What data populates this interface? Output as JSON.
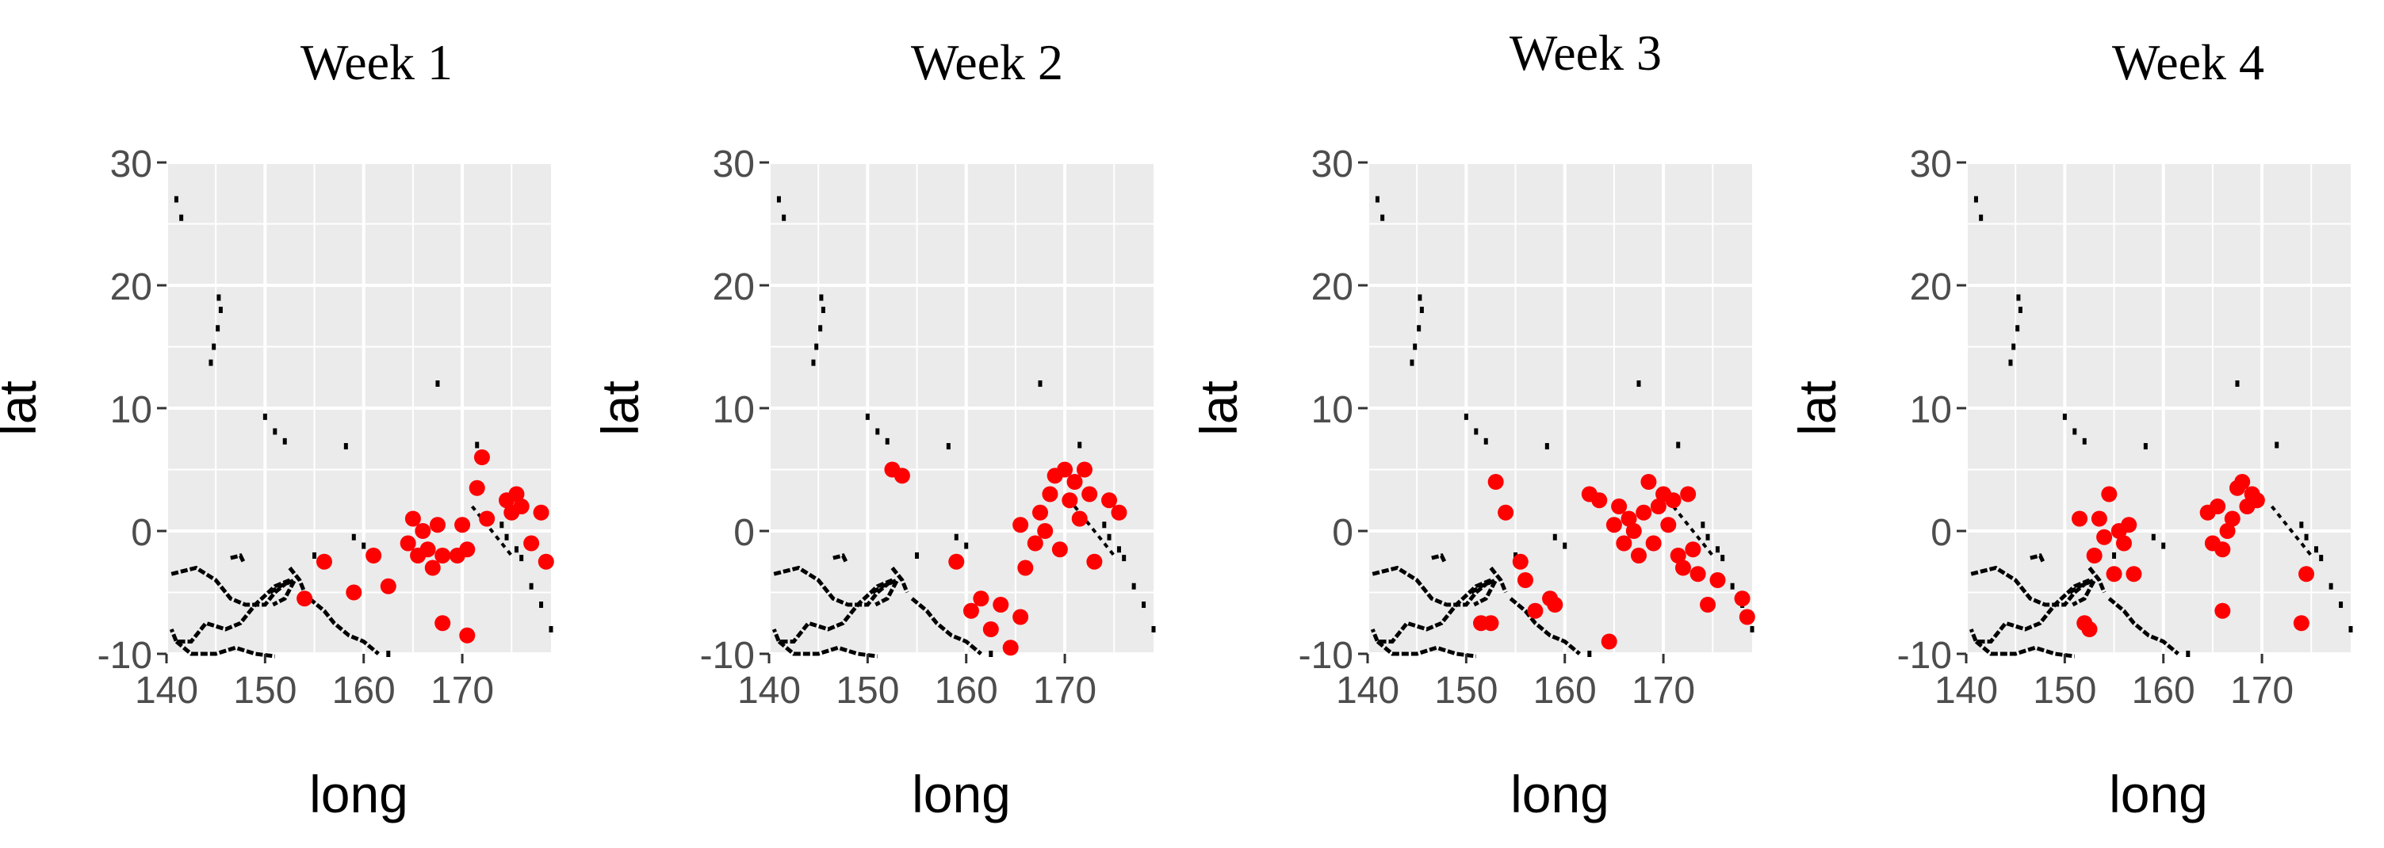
{
  "figure": {
    "panel_titles": [
      "Week 1",
      "Week 2",
      "Week 3",
      "Week 4"
    ]
  },
  "colors": {
    "panel_bg": "#ebebeb",
    "grid": "#ffffff",
    "point": "#ff0000",
    "coast": "#000000",
    "tick_text": "#4d4d4d"
  },
  "chart_data": [
    {
      "type": "scatter",
      "title": "Week 1",
      "xlabel": "long",
      "ylabel": "lat",
      "xlim": [
        140,
        179
      ],
      "ylim": [
        -10,
        30
      ],
      "xticks": [
        140,
        150,
        160,
        170
      ],
      "yticks": [
        -10,
        0,
        10,
        20,
        30
      ],
      "points": [
        [
          154,
          -5.5
        ],
        [
          156,
          -2.5
        ],
        [
          159,
          -5
        ],
        [
          161,
          -2
        ],
        [
          162.5,
          -4.5
        ],
        [
          164.5,
          -1
        ],
        [
          165,
          1
        ],
        [
          165.5,
          -2
        ],
        [
          166,
          0
        ],
        [
          166.5,
          -1.5
        ],
        [
          167,
          -3
        ],
        [
          167.5,
          0.5
        ],
        [
          168,
          -2
        ],
        [
          168,
          -7.5
        ],
        [
          169.5,
          -2
        ],
        [
          170,
          0.5
        ],
        [
          170.5,
          -1.5
        ],
        [
          170.5,
          -8.5
        ],
        [
          171.5,
          3.5
        ],
        [
          172,
          6
        ],
        [
          172.5,
          1
        ],
        [
          174.5,
          2.5
        ],
        [
          175,
          1.5
        ],
        [
          175.5,
          3
        ],
        [
          176,
          2
        ],
        [
          177,
          -1
        ],
        [
          178,
          1.5
        ],
        [
          178.5,
          -2.5
        ]
      ]
    },
    {
      "type": "scatter",
      "title": "Week 2",
      "xlabel": "long",
      "ylabel": "lat",
      "xlim": [
        140,
        179
      ],
      "ylim": [
        -10,
        30
      ],
      "xticks": [
        140,
        150,
        160,
        170
      ],
      "yticks": [
        -10,
        0,
        10,
        20,
        30
      ],
      "points": [
        [
          152.5,
          5
        ],
        [
          153.5,
          4.5
        ],
        [
          159,
          -2.5
        ],
        [
          160.5,
          -6.5
        ],
        [
          161.5,
          -5.5
        ],
        [
          162.5,
          -8
        ],
        [
          163.5,
          -6
        ],
        [
          164.5,
          -9.5
        ],
        [
          165.5,
          0.5
        ],
        [
          165.5,
          -7
        ],
        [
          166,
          -3
        ],
        [
          167,
          -1
        ],
        [
          167.5,
          1.5
        ],
        [
          168,
          0
        ],
        [
          168.5,
          3
        ],
        [
          169,
          4.5
        ],
        [
          169.5,
          -1.5
        ],
        [
          170,
          5
        ],
        [
          170.5,
          2.5
        ],
        [
          171,
          4
        ],
        [
          171.5,
          1
        ],
        [
          172,
          5
        ],
        [
          172.5,
          3
        ],
        [
          173,
          -2.5
        ],
        [
          174.5,
          2.5
        ],
        [
          175.5,
          1.5
        ]
      ]
    },
    {
      "type": "scatter",
      "title": "Week 3",
      "xlabel": "long",
      "ylabel": "lat",
      "xlim": [
        140,
        179
      ],
      "ylim": [
        -10,
        30
      ],
      "xticks": [
        140,
        150,
        160,
        170
      ],
      "yticks": [
        -10,
        0,
        10,
        20,
        30
      ],
      "points": [
        [
          151.5,
          -7.5
        ],
        [
          152.5,
          -7.5
        ],
        [
          153,
          4
        ],
        [
          154,
          1.5
        ],
        [
          155.5,
          -2.5
        ],
        [
          156,
          -4
        ],
        [
          157,
          -6.5
        ],
        [
          158.5,
          -5.5
        ],
        [
          159,
          -6
        ],
        [
          162.5,
          3
        ],
        [
          163.5,
          2.5
        ],
        [
          164.5,
          -9
        ],
        [
          165,
          0.5
        ],
        [
          165.5,
          2
        ],
        [
          166,
          -1
        ],
        [
          166.5,
          1
        ],
        [
          167,
          0
        ],
        [
          167.5,
          -2
        ],
        [
          168,
          1.5
        ],
        [
          168.5,
          4
        ],
        [
          169,
          -1
        ],
        [
          169.5,
          2
        ],
        [
          170,
          3
        ],
        [
          170.5,
          0.5
        ],
        [
          171,
          2.5
        ],
        [
          171.5,
          -2
        ],
        [
          172,
          -3
        ],
        [
          172.5,
          3
        ],
        [
          173,
          -1.5
        ],
        [
          173.5,
          -3.5
        ],
        [
          174.5,
          -6
        ],
        [
          175.5,
          -4
        ],
        [
          178,
          -5.5
        ],
        [
          178.5,
          -7
        ]
      ]
    },
    {
      "type": "scatter",
      "title": "Week 4",
      "xlabel": "long",
      "ylabel": "lat",
      "xlim": [
        140,
        179
      ],
      "ylim": [
        -10,
        30
      ],
      "xticks": [
        140,
        150,
        160,
        170
      ],
      "yticks": [
        -10,
        0,
        10,
        20,
        30
      ],
      "points": [
        [
          151.5,
          1
        ],
        [
          152,
          -7.5
        ],
        [
          152.5,
          -8
        ],
        [
          153,
          -2
        ],
        [
          153.5,
          1
        ],
        [
          154,
          -0.5
        ],
        [
          154.5,
          3
        ],
        [
          155,
          -3.5
        ],
        [
          155.5,
          0
        ],
        [
          156,
          -1
        ],
        [
          156.5,
          0.5
        ],
        [
          157,
          -3.5
        ],
        [
          164.5,
          1.5
        ],
        [
          165,
          -1
        ],
        [
          165.5,
          2
        ],
        [
          166,
          -1.5
        ],
        [
          166,
          -6.5
        ],
        [
          166.5,
          0
        ],
        [
          167,
          1
        ],
        [
          167.5,
          3.5
        ],
        [
          168,
          4
        ],
        [
          168.5,
          2
        ],
        [
          169,
          3
        ],
        [
          169.5,
          2.5
        ],
        [
          174.5,
          -3.5
        ],
        [
          174,
          -7.5
        ]
      ]
    }
  ]
}
